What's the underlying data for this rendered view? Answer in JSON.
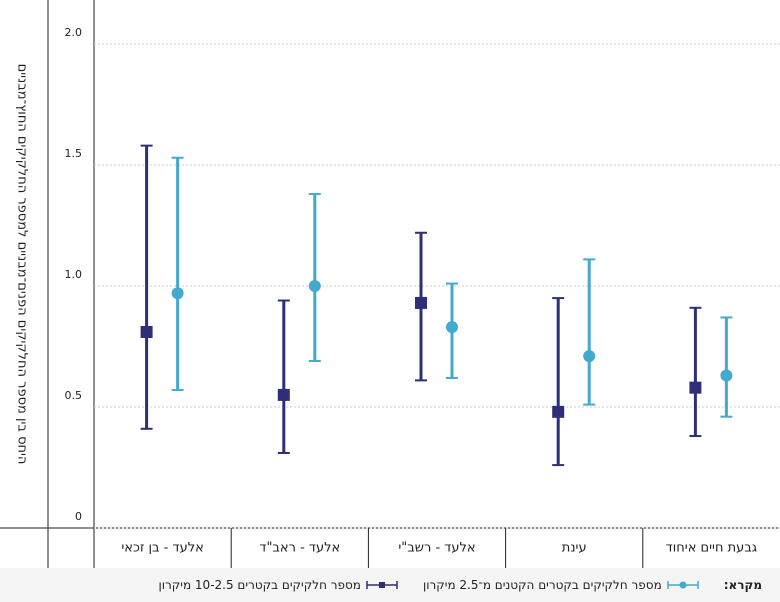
{
  "chart_data": {
    "type": "errorbar",
    "y_label": "היחס בין מספר החלקיקים הפנים־מבניים למספר החלקיקים החוץ־מבניים",
    "categories": [
      "אלעד - בן זכאי",
      "אלעד - ראב\"ד",
      "אלעד - רשב\"י",
      "עינת",
      "גבעת חיים איחוד"
    ],
    "ylim": [
      0,
      2
    ],
    "yticks": [
      0,
      0.5,
      {
        "value": 1,
        "label": "1.0"
      },
      1.5,
      {
        "value": 2,
        "label": "2.0"
      }
    ],
    "grid": true,
    "legend_title": "מקרא:",
    "series": [
      {
        "name": "מספר חלקיקים בקטרים 10-2.5 מיקרון",
        "color": "#2e2f78",
        "marker": "square",
        "values": [
          0.81,
          0.55,
          0.93,
          0.48,
          0.58
        ],
        "low": [
          0.41,
          0.31,
          0.61,
          0.26,
          0.38
        ],
        "high": [
          1.58,
          0.94,
          1.22,
          0.95,
          0.91
        ]
      },
      {
        "name": "מספר חלקיקים בקטרים הקטנים מ־2.5 מיקרון",
        "color": "#44a9cf",
        "marker": "circle",
        "values": [
          0.97,
          1.0,
          0.83,
          0.71,
          0.63
        ],
        "low": [
          0.57,
          0.69,
          0.62,
          0.51,
          0.46
        ],
        "high": [
          1.53,
          1.38,
          1.01,
          1.11,
          0.87
        ]
      }
    ]
  }
}
